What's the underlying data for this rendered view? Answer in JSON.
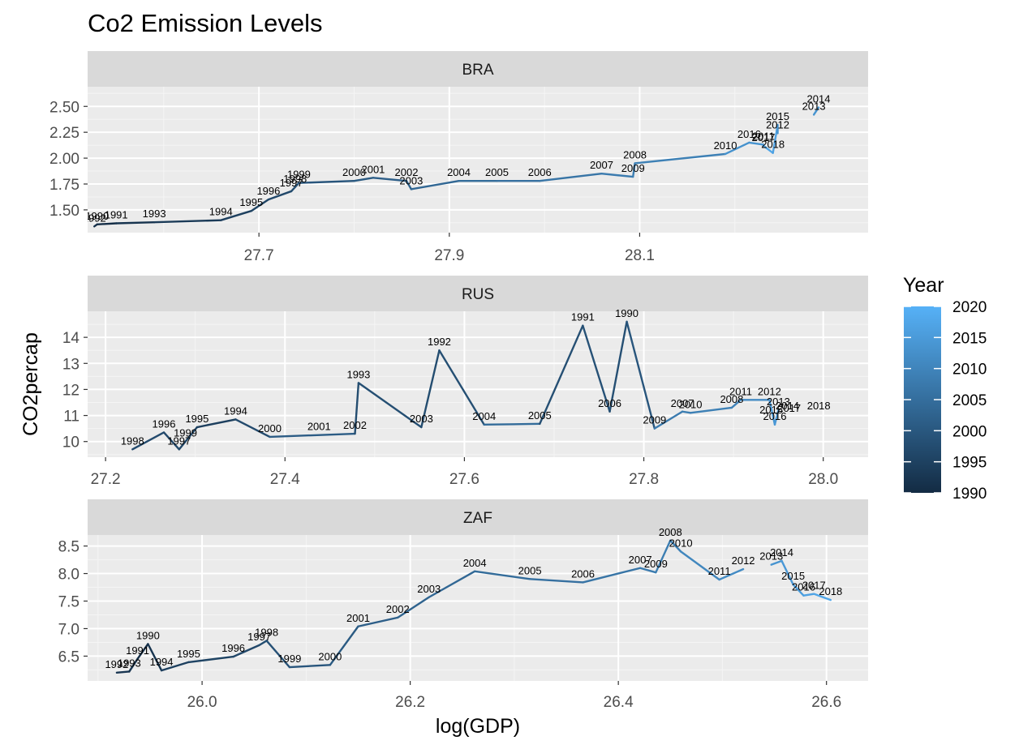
{
  "chart_data": {
    "type": "line",
    "title": "Co2 Emission Levels",
    "xlabel": "log(GDP)",
    "ylabel": "CO2percap",
    "legend": {
      "title": "Year",
      "position": "right",
      "breaks": [
        1990,
        1995,
        2000,
        2005,
        2010,
        2015,
        2020
      ],
      "range": [
        1990,
        2020
      ],
      "colors": {
        "low": "#132B43",
        "high": "#56B1F7"
      }
    },
    "panel_background": "#ebebeb",
    "strip_background": "#d9d9d9",
    "grid": true,
    "facets": [
      {
        "label": "BRA",
        "xlim": [
          27.52,
          28.34
        ],
        "ylim": [
          1.28,
          2.69
        ],
        "xticks": [
          "27.7",
          "27.9",
          "28.1"
        ],
        "yticks": [
          "1.50",
          "1.75",
          "2.00",
          "2.25",
          "2.50"
        ],
        "points": [
          {
            "year": 1992,
            "x": 27.527,
            "y": 1.34
          },
          {
            "year": 1990,
            "x": 27.53,
            "y": 1.36
          },
          {
            "year": 1991,
            "x": 27.55,
            "y": 1.37
          },
          {
            "year": 1993,
            "x": 27.59,
            "y": 1.38
          },
          {
            "year": 1994,
            "x": 27.66,
            "y": 1.4
          },
          {
            "year": 1995,
            "x": 27.692,
            "y": 1.49
          },
          {
            "year": 1996,
            "x": 27.71,
            "y": 1.6
          },
          {
            "year": 1997,
            "x": 27.734,
            "y": 1.68
          },
          {
            "year": 1998,
            "x": 27.738,
            "y": 1.72
          },
          {
            "year": 1999,
            "x": 27.742,
            "y": 1.76
          },
          {
            "year": 2000,
            "x": 27.8,
            "y": 1.78
          },
          {
            "year": 2001,
            "x": 27.82,
            "y": 1.81
          },
          {
            "year": 2002,
            "x": 27.855,
            "y": 1.78
          },
          {
            "year": 2003,
            "x": 27.86,
            "y": 1.7
          },
          {
            "year": 2004,
            "x": 27.91,
            "y": 1.78
          },
          {
            "year": 2005,
            "x": 27.95,
            "y": 1.78
          },
          {
            "year": 2006,
            "x": 27.995,
            "y": 1.78
          },
          {
            "year": 2007,
            "x": 28.06,
            "y": 1.85
          },
          {
            "year": 2008,
            "x": 28.095,
            "y": 1.95
          },
          {
            "year": 2009,
            "x": 28.093,
            "y": 1.82
          },
          {
            "year": 2010,
            "x": 28.19,
            "y": 2.04
          },
          {
            "year": 2011,
            "x": 28.23,
            "y": 2.13
          },
          {
            "year": 2012,
            "x": 28.245,
            "y": 2.24
          },
          {
            "year": 2013,
            "x": 28.283,
            "y": 2.42
          },
          {
            "year": 2014,
            "x": 28.288,
            "y": 2.49
          },
          {
            "year": 2015,
            "x": 28.245,
            "y": 2.32
          },
          {
            "year": 2016,
            "x": 28.215,
            "y": 2.15
          },
          {
            "year": 2017,
            "x": 28.23,
            "y": 2.12
          },
          {
            "year": 2018,
            "x": 28.24,
            "y": 2.05
          }
        ],
        "segments": [
          [
            1992,
            1990,
            1991,
            1993,
            1994,
            1995,
            1996,
            1997,
            1998,
            1999,
            2000,
            2001,
            2002,
            2003,
            2004,
            2005,
            2006,
            2007,
            2009,
            2008,
            2010,
            2016,
            2011,
            2017,
            2018,
            2015,
            2012
          ],
          [
            2013,
            2014
          ]
        ]
      },
      {
        "label": "RUS",
        "xlim": [
          27.18,
          28.05
        ],
        "ylim": [
          9.4,
          15.0
        ],
        "xticks": [
          "27.2",
          "27.4",
          "27.6",
          "27.8",
          "28.0"
        ],
        "yticks": [
          "10",
          "11",
          "12",
          "13",
          "14"
        ],
        "points": [
          {
            "year": 1998,
            "x": 27.23,
            "y": 9.7
          },
          {
            "year": 1996,
            "x": 27.265,
            "y": 10.35
          },
          {
            "year": 1997,
            "x": 27.282,
            "y": 9.7
          },
          {
            "year": 1999,
            "x": 27.289,
            "y": 10.0
          },
          {
            "year": 1995,
            "x": 27.302,
            "y": 10.55
          },
          {
            "year": 1994,
            "x": 27.345,
            "y": 10.85
          },
          {
            "year": 2000,
            "x": 27.383,
            "y": 10.18
          },
          {
            "year": 2001,
            "x": 27.438,
            "y": 10.25
          },
          {
            "year": 2002,
            "x": 27.478,
            "y": 10.3
          },
          {
            "year": 1993,
            "x": 27.482,
            "y": 12.25
          },
          {
            "year": 2003,
            "x": 27.552,
            "y": 10.55
          },
          {
            "year": 1992,
            "x": 27.572,
            "y": 13.5
          },
          {
            "year": 2004,
            "x": 27.622,
            "y": 10.65
          },
          {
            "year": 2005,
            "x": 27.684,
            "y": 10.68
          },
          {
            "year": 1991,
            "x": 27.732,
            "y": 14.45
          },
          {
            "year": 2006,
            "x": 27.762,
            "y": 11.15
          },
          {
            "year": 1990,
            "x": 27.781,
            "y": 14.6
          },
          {
            "year": 2009,
            "x": 27.812,
            "y": 10.5
          },
          {
            "year": 2007,
            "x": 27.843,
            "y": 11.15
          },
          {
            "year": 2010,
            "x": 27.852,
            "y": 11.1
          },
          {
            "year": 2008,
            "x": 27.898,
            "y": 11.3
          },
          {
            "year": 2011,
            "x": 27.908,
            "y": 11.6
          },
          {
            "year": 2012,
            "x": 27.94,
            "y": 11.6
          },
          {
            "year": 2016,
            "x": 27.946,
            "y": 10.65
          },
          {
            "year": 2015,
            "x": 27.942,
            "y": 10.9
          },
          {
            "year": 2013,
            "x": 27.95,
            "y": 11.2
          },
          {
            "year": 2014,
            "x": 27.96,
            "y": 11.05
          },
          {
            "year": 2017,
            "x": 27.962,
            "y": 10.95
          },
          {
            "year": 2018,
            "x": 27.995,
            "y": 11.05
          }
        ],
        "segments": [
          [
            1990,
            1991,
            1992,
            1993,
            1994,
            1995,
            1996,
            1997,
            1998,
            1999,
            2000,
            2001,
            2002,
            2003,
            2004,
            2005,
            2006,
            2007,
            2008,
            2009,
            2010,
            2011,
            2012,
            2013,
            2014,
            2015,
            2016,
            2017,
            2018
          ]
        ],
        "path_order": [
          1998,
          1996,
          1997,
          1995,
          1994,
          2000,
          2002,
          1993,
          2003,
          1992,
          2004,
          2005,
          1991,
          2006,
          1990,
          2009,
          2007,
          2010,
          2008,
          2011,
          2012,
          2016,
          2013
        ]
      },
      {
        "label": "ZAF",
        "xlim": [
          25.89,
          26.64
        ],
        "ylim": [
          6.05,
          8.7
        ],
        "xticks": [
          "26.0",
          "26.2",
          "26.4",
          "26.6"
        ],
        "yticks": [
          "6.5",
          "7.0",
          "7.5",
          "8.0",
          "8.5"
        ],
        "points": [
          {
            "year": 1992,
            "x": 25.918,
            "y": 6.2
          },
          {
            "year": 1993,
            "x": 25.93,
            "y": 6.22
          },
          {
            "year": 1991,
            "x": 25.938,
            "y": 6.45
          },
          {
            "year": 1990,
            "x": 25.948,
            "y": 6.72
          },
          {
            "year": 1994,
            "x": 25.961,
            "y": 6.24
          },
          {
            "year": 1995,
            "x": 25.987,
            "y": 6.39
          },
          {
            "year": 1996,
            "x": 26.03,
            "y": 6.49
          },
          {
            "year": 1997,
            "x": 26.055,
            "y": 6.7
          },
          {
            "year": 1998,
            "x": 26.062,
            "y": 6.78
          },
          {
            "year": 1999,
            "x": 26.084,
            "y": 6.3
          },
          {
            "year": 2000,
            "x": 26.123,
            "y": 6.34
          },
          {
            "year": 2001,
            "x": 26.15,
            "y": 7.04
          },
          {
            "year": 2002,
            "x": 26.188,
            "y": 7.2
          },
          {
            "year": 2003,
            "x": 26.218,
            "y": 7.57
          },
          {
            "year": 2004,
            "x": 26.262,
            "y": 8.04
          },
          {
            "year": 2005,
            "x": 26.315,
            "y": 7.9
          },
          {
            "year": 2006,
            "x": 26.366,
            "y": 7.84
          },
          {
            "year": 2007,
            "x": 26.421,
            "y": 8.1
          },
          {
            "year": 2009,
            "x": 26.436,
            "y": 8.02
          },
          {
            "year": 2008,
            "x": 26.45,
            "y": 8.6
          },
          {
            "year": 2010,
            "x": 26.46,
            "y": 8.4
          },
          {
            "year": 2011,
            "x": 26.497,
            "y": 7.89
          },
          {
            "year": 2012,
            "x": 26.52,
            "y": 8.08
          },
          {
            "year": 2013,
            "x": 26.547,
            "y": 8.16
          },
          {
            "year": 2014,
            "x": 26.557,
            "y": 8.23
          },
          {
            "year": 2015,
            "x": 26.568,
            "y": 7.8
          },
          {
            "year": 2016,
            "x": 26.578,
            "y": 7.6
          },
          {
            "year": 2017,
            "x": 26.588,
            "y": 7.63
          },
          {
            "year": 2018,
            "x": 26.604,
            "y": 7.52
          }
        ],
        "segments": [
          [
            1992,
            1993,
            1991,
            1990,
            1994,
            1995,
            1996,
            1997,
            1998,
            1999,
            2000,
            2001,
            2002,
            2003,
            2004,
            2005,
            2006,
            2007,
            2009,
            2008,
            2010,
            2011,
            2012
          ],
          [
            2013,
            2014,
            2015,
            2016,
            2017,
            2018
          ]
        ]
      }
    ]
  }
}
